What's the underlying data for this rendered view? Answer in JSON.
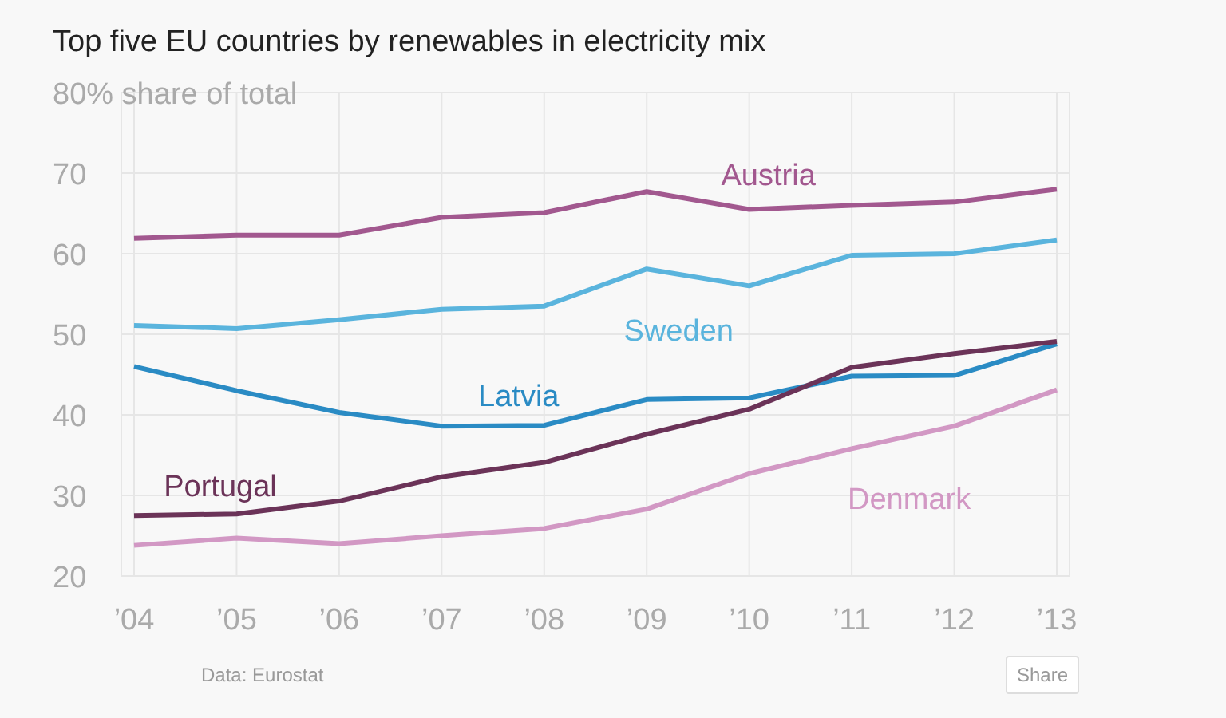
{
  "chart_data": {
    "type": "line",
    "title": "Top five EU countries by renewables in electricity mix",
    "categories": [
      "’04",
      "’05",
      "’06",
      "’07",
      "’08",
      "’09",
      "’10",
      "’11",
      "’12",
      "’13"
    ],
    "series": [
      {
        "name": "Austria",
        "color": "#a2588f",
        "values": [
          61.9,
          62.3,
          62.3,
          64.5,
          65.1,
          67.7,
          65.5,
          66.0,
          66.4,
          68.0
        ]
      },
      {
        "name": "Sweden",
        "color": "#5ab4dd",
        "values": [
          51.1,
          50.7,
          51.8,
          53.1,
          53.5,
          58.1,
          56.0,
          59.8,
          60.0,
          61.7
        ]
      },
      {
        "name": "Latvia",
        "color": "#2a8bc4",
        "values": [
          46.0,
          43.0,
          40.3,
          38.6,
          38.7,
          41.9,
          42.1,
          44.8,
          44.9,
          48.8
        ]
      },
      {
        "name": "Portugal",
        "color": "#6b3358",
        "values": [
          27.5,
          27.7,
          29.3,
          32.3,
          34.1,
          37.6,
          40.7,
          45.9,
          47.6,
          49.1
        ]
      },
      {
        "name": "Denmark",
        "color": "#d298c4",
        "values": [
          23.8,
          24.7,
          24.0,
          25.0,
          25.9,
          28.3,
          32.7,
          35.8,
          38.6,
          43.1
        ]
      }
    ],
    "ylim": [
      20,
      80
    ],
    "yticks": [
      20,
      30,
      40,
      50,
      60,
      70,
      {
        "value": 80,
        "label": "80% share of total"
      }
    ],
    "grid": true,
    "legend": false,
    "marker": "none",
    "line_style": "solid",
    "annotations": [
      "Data: Eurostat",
      "Share"
    ]
  }
}
